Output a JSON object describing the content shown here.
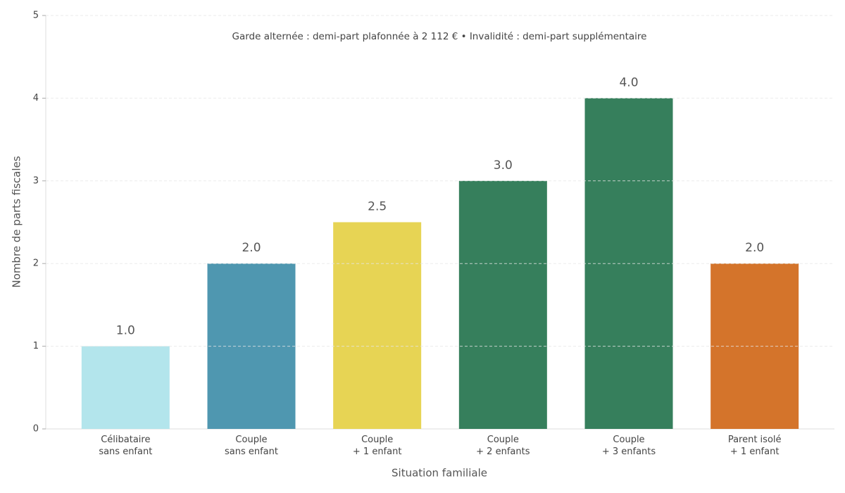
{
  "chart_data": {
    "type": "bar",
    "annotation": "Garde alternée : demi-part plafonnée à 2 112 € • Invalidité : demi-part supplémentaire",
    "x_label": "Situation familiale",
    "y_label": "Nombre de parts fiscales",
    "categories": [
      "Célibataire\nsans enfant",
      "Couple\nsans enfant",
      "Couple\n+ 1 enfant",
      "Couple\n+ 2 enfants",
      "Couple\n+ 3 enfants",
      "Parent isolé\n+ 1 enfant"
    ],
    "values": [
      1,
      2,
      2.5,
      3,
      4,
      2
    ],
    "value_labels": [
      "1.0",
      "2.0",
      "2.5",
      "3.0",
      "4.0",
      "2.0"
    ],
    "colors": [
      "#b3e5ec",
      "#4f97b0",
      "#e7d454",
      "#367f5c",
      "#367f5c",
      "#d4742b"
    ],
    "ylim": [
      0,
      5
    ],
    "yticks": [
      0,
      1,
      2,
      3,
      4,
      5
    ],
    "grid": true
  }
}
